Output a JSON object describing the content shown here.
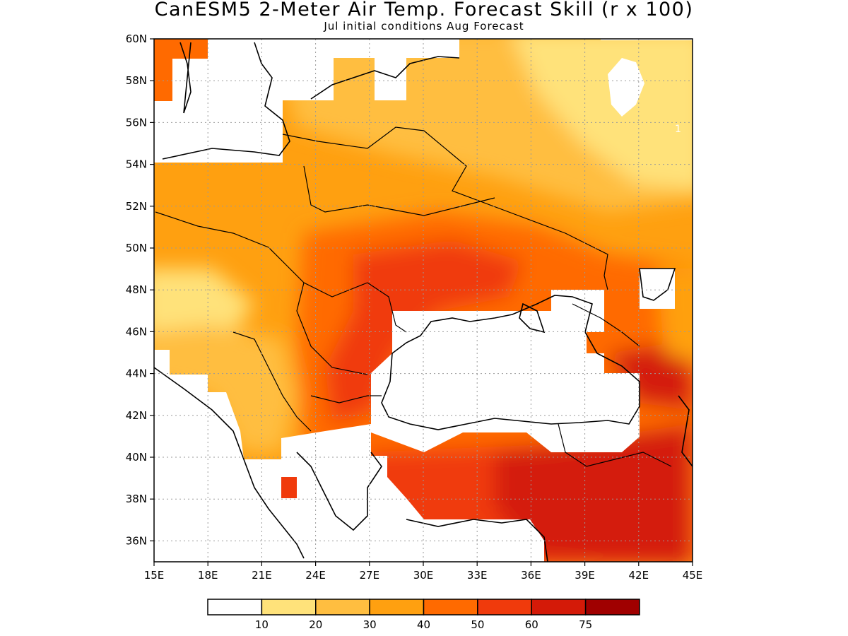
{
  "title": "CanESM5 2-Meter Air Temp. Forecast Skill (r x 100)",
  "subtitle": "Jul initial conditions  Aug Forecast",
  "map": {
    "lon_range": [
      15,
      45
    ],
    "lat_range": [
      35,
      60
    ],
    "lat_ticks": [
      "60N",
      "58N",
      "56N",
      "54N",
      "52N",
      "50N",
      "48N",
      "46N",
      "44N",
      "42N",
      "40N",
      "38N",
      "36N"
    ],
    "lat_tick_values": [
      60,
      58,
      56,
      54,
      52,
      50,
      48,
      46,
      44,
      42,
      40,
      38,
      36
    ],
    "lon_ticks": [
      "15E",
      "18E",
      "21E",
      "24E",
      "27E",
      "30E",
      "33E",
      "36E",
      "39E",
      "42E",
      "45E"
    ],
    "lon_tick_values": [
      15,
      18,
      21,
      24,
      27,
      30,
      33,
      36,
      39,
      42,
      45
    ],
    "grid": true,
    "isolated_label": "1"
  },
  "colorbar": {
    "labels": [
      "10",
      "20",
      "30",
      "40",
      "50",
      "60",
      "75"
    ],
    "colors": [
      "#ffffff",
      "#ffe27a",
      "#ffbe40",
      "#ffa010",
      "#ff6a00",
      "#f03a0c",
      "#d41a08",
      "#a00000"
    ]
  }
}
